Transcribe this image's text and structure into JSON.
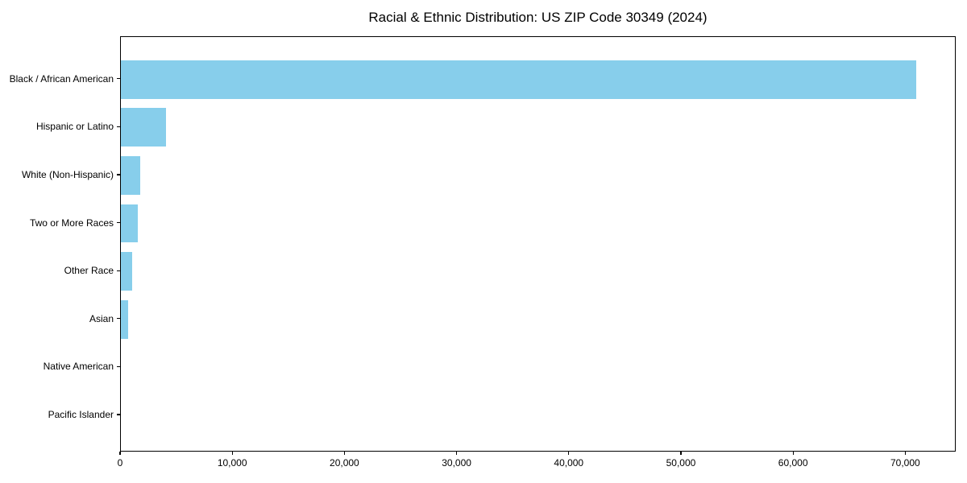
{
  "chart_data": {
    "type": "bar",
    "orientation": "horizontal",
    "title": "Racial & Ethnic Distribution: US ZIP Code 30349 (2024)",
    "categories": [
      "Black / African American",
      "Hispanic or Latino",
      "White (Non-Hispanic)",
      "Two or More Races",
      "Other Race",
      "Asian",
      "Native American",
      "Pacific Islander"
    ],
    "values": [
      70900,
      4000,
      1700,
      1530,
      980,
      650,
      0,
      0
    ],
    "xlabel": "",
    "ylabel": "",
    "xlim": [
      0,
      74500
    ],
    "xticks": [
      0,
      10000,
      20000,
      30000,
      40000,
      50000,
      60000,
      70000
    ],
    "xtick_labels": [
      "0",
      "10,000",
      "20,000",
      "30,000",
      "40,000",
      "50,000",
      "60,000",
      "70,000"
    ],
    "bar_color": "#87CEEB",
    "axis_color": "#000000",
    "text_color": "#000000",
    "background_color": "#FFFFFF",
    "grid": false,
    "legend": "none",
    "bar_height_fraction": 0.8
  }
}
